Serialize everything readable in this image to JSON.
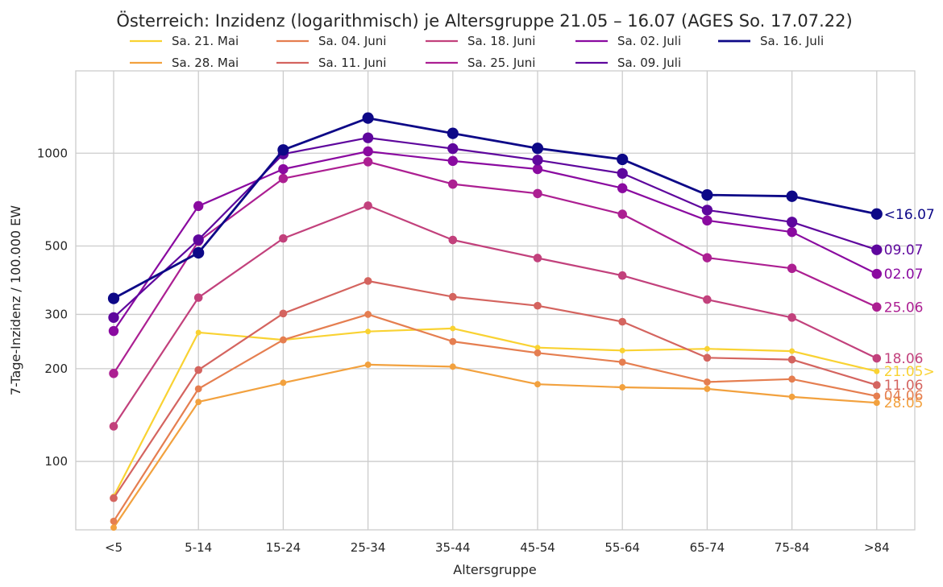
{
  "chart_data": {
    "type": "line",
    "title": "Österreich: Inzidenz (logarithmisch) je Altersgruppe 21.05 – 16.07 (AGES So. 17.07.22)",
    "xlabel": "Altersgruppe",
    "ylabel": "7-Tage-Inzidenz / 100.000 EW",
    "yscale": "log",
    "ylim": [
      60,
      1850
    ],
    "yticks": [
      100,
      200,
      300,
      500,
      1000
    ],
    "grid": true,
    "legend_position": "top",
    "categories": [
      "<5",
      "5-14",
      "15-24",
      "25-34",
      "35-44",
      "45-54",
      "55-64",
      "65-74",
      "75-84",
      ">84"
    ],
    "series": [
      {
        "name": "Sa. 21. Mai",
        "end_label": "21.05>",
        "color": "#f9d232",
        "values": [
          77,
          262,
          248,
          264,
          270,
          234,
          229,
          232,
          228,
          196
        ]
      },
      {
        "name": "Sa. 28. Mai",
        "end_label": "28.05",
        "color": "#f2a13e",
        "values": [
          61,
          156,
          180,
          206,
          203,
          178,
          174,
          172,
          162,
          155
        ]
      },
      {
        "name": "Sa. 04. Juni",
        "end_label": "04.06",
        "color": "#e57e50",
        "values": [
          64,
          172,
          248,
          300,
          245,
          225,
          210,
          181,
          185,
          163
        ]
      },
      {
        "name": "Sa. 11. Juni",
        "end_label": "11.06",
        "color": "#d4645f",
        "values": [
          76,
          198,
          302,
          385,
          342,
          320,
          284,
          217,
          214,
          177
        ]
      },
      {
        "name": "Sa. 18. Juni",
        "end_label": "18.06",
        "color": "#c2417c",
        "values": [
          130,
          340,
          529,
          676,
          523,
          457,
          401,
          335,
          293,
          216
        ]
      },
      {
        "name": "Sa. 25. Juni",
        "end_label": "25.06",
        "color": "#ac1f92",
        "values": [
          193,
          518,
          828,
          938,
          794,
          740,
          634,
          458,
          423,
          317
        ]
      },
      {
        "name": "Sa. 02. Juli",
        "end_label": "02.07",
        "color": "#8a0aa0",
        "values": [
          265,
          674,
          888,
          1014,
          944,
          888,
          770,
          605,
          555,
          406
        ]
      },
      {
        "name": "Sa. 09. Juli",
        "end_label": "09.07",
        "color": "#5e069d",
        "values": [
          293,
          524,
          994,
          1122,
          1035,
          950,
          860,
          654,
          598,
          486
        ]
      },
      {
        "name": "Sa. 16. Juli",
        "end_label": "<16.07",
        "color": "#0d0887",
        "values": [
          338,
          475,
          1025,
          1300,
          1160,
          1037,
          955,
          732,
          725,
          635
        ]
      }
    ]
  }
}
